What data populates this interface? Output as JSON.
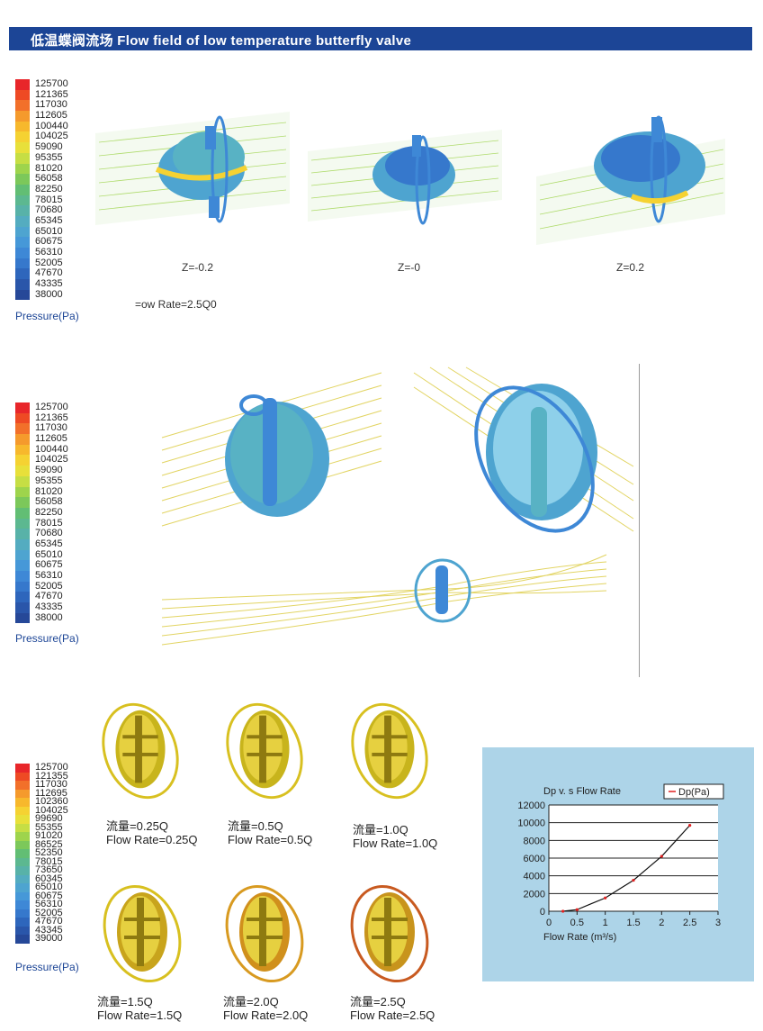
{
  "header": {
    "title": "低温蝶阀流场 Flow field of low temperature butterfly valve",
    "background": "#1c4596"
  },
  "legend_a": {
    "values": [
      "125700",
      "121365",
      "117030",
      "112605",
      "100440",
      "104025",
      "59090",
      "95355",
      "81020",
      "56058",
      "82250",
      "78015",
      "70680",
      "65345",
      "65010",
      "60675",
      "56310",
      "52005",
      "47670",
      "43335",
      "38000"
    ],
    "unit": "Pressure(Pa)"
  },
  "legend_b": {
    "values": [
      "125700",
      "121365",
      "117030",
      "112605",
      "100440",
      "104025",
      "59090",
      "95355",
      "81020",
      "56058",
      "82250",
      "78015",
      "70680",
      "65345",
      "65010",
      "60675",
      "56310",
      "52005",
      "47670",
      "43335",
      "38000"
    ],
    "unit": "Pressure(Pa)"
  },
  "legend_c": {
    "values": [
      "125700",
      "121355",
      "117030",
      "112695",
      "102360",
      "104025",
      "99690",
      "55355",
      "91020",
      "86525",
      "52350",
      "78015",
      "73650",
      "60345",
      "65010",
      "60675",
      "56310",
      "52005",
      "47670",
      "43345",
      "39000"
    ],
    "unit": "Pressure(Pa)"
  },
  "legend_colors": [
    "#e8262a",
    "#ee4a24",
    "#f2702a",
    "#f59a2c",
    "#f7b82c",
    "#f5d232",
    "#e8e03a",
    "#c6de44",
    "#9ed44c",
    "#7cc85a",
    "#62be74",
    "#5cb890",
    "#58b2a8",
    "#54acc0",
    "#4ea4d0",
    "#4698d8",
    "#3e88d6",
    "#3678cc",
    "#2e66bc",
    "#2a56aa",
    "#264898"
  ],
  "section_a": {
    "captions": [
      "Z=-0.2",
      "Z=-0",
      "Z=0.2"
    ],
    "flow_rate": "=ow Rate=2.5Q0"
  },
  "section_c": {
    "labels": [
      {
        "cn": "流量=0.25Q",
        "en": "Flow Rate=0.25Q"
      },
      {
        "cn": "流量=0.5Q",
        "en": "Flow Rate=0.5Q"
      },
      {
        "cn": "流量=1.0Q",
        "en": "Flow Rate=1.0Q"
      },
      {
        "cn": "流量=1.5Q",
        "en": "Flow Rate=1.5Q"
      },
      {
        "cn": "流量=2.0Q",
        "en": "Flow Rate=2.0Q"
      },
      {
        "cn": "流量=2.5Q",
        "en": "Flow Rate=2.5Q"
      }
    ]
  },
  "chart_data": {
    "type": "line",
    "title": "Dp v. s Flow Rate",
    "xlabel": "Flow Rate (m³/s)",
    "ylabel": "",
    "xlim": [
      0,
      3
    ],
    "ylim": [
      0,
      12000
    ],
    "xticks": [
      "0",
      "0.5",
      "1",
      "1.5",
      "2",
      "2.5",
      "3"
    ],
    "yticks": [
      "0",
      "2000",
      "4000",
      "6000",
      "8000",
      "10000",
      "12000"
    ],
    "series": [
      {
        "name": "Dp(Pa)",
        "color": "#e02020",
        "x": [
          0.25,
          0.5,
          1.0,
          1.5,
          2.0,
          2.5
        ],
        "y": [
          0,
          180,
          1500,
          3500,
          6200,
          9700
        ]
      }
    ],
    "legend_position": "top-right",
    "grid": true
  }
}
